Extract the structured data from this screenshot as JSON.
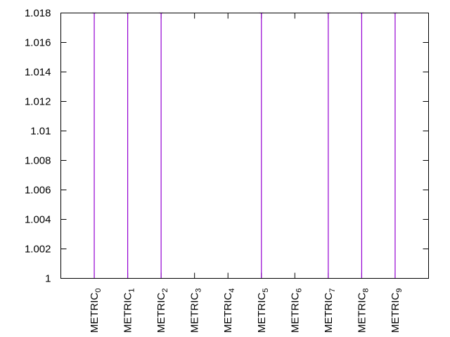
{
  "chart_data": {
    "type": "bar",
    "categories": [
      {
        "base": "METRIC",
        "sub": "0"
      },
      {
        "base": "METRIC",
        "sub": "1"
      },
      {
        "base": "METRIC",
        "sub": "2"
      },
      {
        "base": "METRIC",
        "sub": "3"
      },
      {
        "base": "METRIC",
        "sub": "4"
      },
      {
        "base": "METRIC",
        "sub": "5"
      },
      {
        "base": "METRIC",
        "sub": "6"
      },
      {
        "base": "METRIC",
        "sub": "7"
      },
      {
        "base": "METRIC",
        "sub": "8"
      },
      {
        "base": "METRIC",
        "sub": "9"
      }
    ],
    "values": [
      1.018,
      1.018,
      1.018,
      null,
      null,
      1.018,
      null,
      1.018,
      1.018,
      1.018
    ],
    "title": "",
    "xlabel": "",
    "ylabel": "",
    "ylim": [
      1,
      1.018
    ],
    "yticks": [
      "1",
      "1.002",
      "1.004",
      "1.006",
      "1.008",
      "1.01",
      "1.012",
      "1.014",
      "1.016",
      "1.018"
    ],
    "grid": false,
    "legend": "none",
    "colors": {
      "bar": "#9400d3",
      "axis": "#000000"
    }
  }
}
